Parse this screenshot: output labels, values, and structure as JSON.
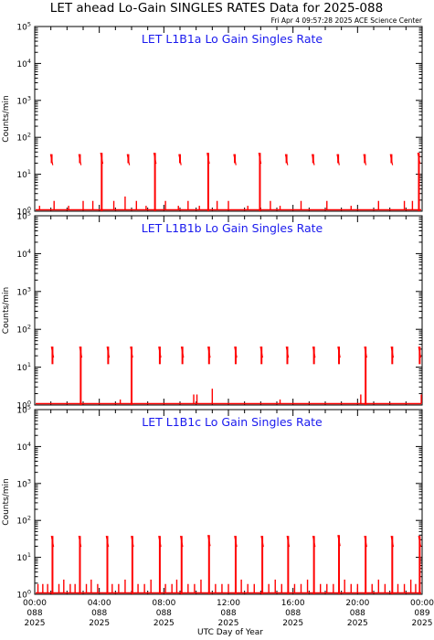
{
  "header": {
    "title": "LET ahead Lo-Gain SINGLES RATES Data for 2025-088",
    "timestamp": "Fri Apr  4 09:57:28 2025 ACE Science Center"
  },
  "colors": {
    "data": "#ff0000",
    "panel_title": "#1a1aee",
    "axes": "#000000"
  },
  "chart_data": [
    {
      "type": "line",
      "title": "LET L1B1a Lo Gain Singles Rate",
      "ylabel": "Counts/min",
      "xlabel": "UTC Day of Year",
      "yscale": "log",
      "ylim": [
        1,
        100000
      ],
      "xlim": [
        0,
        24
      ],
      "yticks": [
        "10^0",
        "10^1",
        "10^2",
        "10^3",
        "10^4",
        "10^5"
      ],
      "baseline": 1,
      "spikes": [
        {
          "x": 1.05,
          "peak": 35,
          "bottom": 20
        },
        {
          "x": 2.8,
          "peak": 35,
          "bottom": 20
        },
        {
          "x": 4.15,
          "peak": 38,
          "bottom": 1
        },
        {
          "x": 5.8,
          "peak": 35,
          "bottom": 20
        },
        {
          "x": 7.45,
          "peak": 38,
          "bottom": 1
        },
        {
          "x": 9.0,
          "peak": 35,
          "bottom": 20
        },
        {
          "x": 10.75,
          "peak": 38,
          "bottom": 1
        },
        {
          "x": 12.4,
          "peak": 35,
          "bottom": 20
        },
        {
          "x": 13.95,
          "peak": 38,
          "bottom": 1
        },
        {
          "x": 15.6,
          "peak": 35,
          "bottom": 20
        },
        {
          "x": 17.25,
          "peak": 35,
          "bottom": 20
        },
        {
          "x": 18.8,
          "peak": 35,
          "bottom": 20
        },
        {
          "x": 20.45,
          "peak": 35,
          "bottom": 20
        },
        {
          "x": 22.1,
          "peak": 35,
          "bottom": 20
        },
        {
          "x": 23.8,
          "peak": 38,
          "bottom": 1
        }
      ],
      "noise": [
        {
          "x": 0.3,
          "y": 1.4
        },
        {
          "x": 1.2,
          "y": 1.9
        },
        {
          "x": 2.1,
          "y": 1.4
        },
        {
          "x": 3.0,
          "y": 1.9
        },
        {
          "x": 3.6,
          "y": 1.9
        },
        {
          "x": 4.9,
          "y": 1.9
        },
        {
          "x": 5.6,
          "y": 2.5
        },
        {
          "x": 6.3,
          "y": 1.9
        },
        {
          "x": 6.9,
          "y": 1.4
        },
        {
          "x": 8.1,
          "y": 1.9
        },
        {
          "x": 8.9,
          "y": 1.4
        },
        {
          "x": 9.5,
          "y": 1.9
        },
        {
          "x": 10.2,
          "y": 1.4
        },
        {
          "x": 11.3,
          "y": 1.9
        },
        {
          "x": 12.0,
          "y": 1.9
        },
        {
          "x": 13.2,
          "y": 1.4
        },
        {
          "x": 14.6,
          "y": 1.9
        },
        {
          "x": 15.2,
          "y": 1.4
        },
        {
          "x": 16.5,
          "y": 1.9
        },
        {
          "x": 18.1,
          "y": 1.9
        },
        {
          "x": 19.6,
          "y": 1.4
        },
        {
          "x": 21.3,
          "y": 1.9
        },
        {
          "x": 22.9,
          "y": 1.9
        },
        {
          "x": 23.4,
          "y": 1.9
        }
      ]
    },
    {
      "type": "line",
      "title": "LET L1B1b Lo Gain Singles Rate",
      "ylabel": "Counts/min",
      "xlabel": "UTC Day of Year",
      "yscale": "log",
      "ylim": [
        1,
        100000
      ],
      "xlim": [
        0,
        24
      ],
      "yticks": [
        "10^0",
        "10^1",
        "10^2",
        "10^3",
        "10^4",
        "10^5"
      ],
      "baseline": 1,
      "spikes": [
        {
          "x": 1.1,
          "peak": 35,
          "bottom": 12
        },
        {
          "x": 2.85,
          "peak": 35,
          "bottom": 1
        },
        {
          "x": 4.55,
          "peak": 35,
          "bottom": 12
        },
        {
          "x": 6.0,
          "peak": 35,
          "bottom": 1
        },
        {
          "x": 7.75,
          "peak": 35,
          "bottom": 12
        },
        {
          "x": 9.15,
          "peak": 35,
          "bottom": 12
        },
        {
          "x": 10.8,
          "peak": 35,
          "bottom": 12
        },
        {
          "x": 12.45,
          "peak": 35,
          "bottom": 12
        },
        {
          "x": 14.05,
          "peak": 35,
          "bottom": 12
        },
        {
          "x": 15.65,
          "peak": 35,
          "bottom": 12
        },
        {
          "x": 17.3,
          "peak": 35,
          "bottom": 12
        },
        {
          "x": 18.85,
          "peak": 35,
          "bottom": 12
        },
        {
          "x": 20.5,
          "peak": 35,
          "bottom": 1
        },
        {
          "x": 22.15,
          "peak": 35,
          "bottom": 12
        },
        {
          "x": 23.85,
          "peak": 35,
          "bottom": 12
        }
      ],
      "noise": [
        {
          "x": 9.85,
          "y": 1.9
        },
        {
          "x": 10.05,
          "y": 1.9
        },
        {
          "x": 11.0,
          "y": 2.7
        },
        {
          "x": 20.2,
          "y": 1.9
        },
        {
          "x": 23.95,
          "y": 1.9
        },
        {
          "x": 15.2,
          "y": 1.4
        },
        {
          "x": 5.3,
          "y": 1.4
        }
      ]
    },
    {
      "type": "line",
      "title": "LET L1B1c Lo Gain Singles Rate",
      "ylabel": "Counts/min",
      "xlabel": "UTC Day of Year",
      "yscale": "log",
      "ylim": [
        1,
        100000
      ],
      "xlim": [
        0,
        24
      ],
      "yticks": [
        "10^0",
        "10^1",
        "10^2",
        "10^3",
        "10^4",
        "10^5"
      ],
      "xticks": [
        {
          "x": 0,
          "time": "00:00",
          "doy": "088",
          "year": "2025"
        },
        {
          "x": 4,
          "time": "04:00",
          "doy": "088",
          "year": "2025"
        },
        {
          "x": 8,
          "time": "08:00",
          "doy": "088",
          "year": "2025"
        },
        {
          "x": 12,
          "time": "12:00",
          "doy": "088",
          "year": "2025"
        },
        {
          "x": 16,
          "time": "16:00",
          "doy": "088",
          "year": "2025"
        },
        {
          "x": 20,
          "time": "20:00",
          "doy": "088",
          "year": "2025"
        },
        {
          "x": 24,
          "time": "00:00",
          "doy": "089",
          "year": "2025"
        }
      ],
      "baseline": 1,
      "spikes": [
        {
          "x": 1.1,
          "peak": 38,
          "bottom": 1
        },
        {
          "x": 2.8,
          "peak": 38,
          "bottom": 1
        },
        {
          "x": 4.5,
          "peak": 38,
          "bottom": 1
        },
        {
          "x": 6.05,
          "peak": 38,
          "bottom": 1
        },
        {
          "x": 7.75,
          "peak": 38,
          "bottom": 1
        },
        {
          "x": 9.1,
          "peak": 38,
          "bottom": 1
        },
        {
          "x": 10.8,
          "peak": 40,
          "bottom": 1
        },
        {
          "x": 12.45,
          "peak": 38,
          "bottom": 1
        },
        {
          "x": 14.1,
          "peak": 38,
          "bottom": 1
        },
        {
          "x": 15.7,
          "peak": 38,
          "bottom": 1
        },
        {
          "x": 17.3,
          "peak": 38,
          "bottom": 1
        },
        {
          "x": 18.85,
          "peak": 40,
          "bottom": 1
        },
        {
          "x": 20.5,
          "peak": 38,
          "bottom": 1
        },
        {
          "x": 22.15,
          "peak": 38,
          "bottom": 1
        },
        {
          "x": 23.85,
          "peak": 38,
          "bottom": 1
        }
      ],
      "noise": [
        {
          "x": 0.2,
          "y": 1.9
        },
        {
          "x": 0.5,
          "y": 1.9
        },
        {
          "x": 0.8,
          "y": 1.9
        },
        {
          "x": 1.5,
          "y": 1.9
        },
        {
          "x": 1.8,
          "y": 2.5
        },
        {
          "x": 2.2,
          "y": 1.9
        },
        {
          "x": 2.5,
          "y": 1.9
        },
        {
          "x": 3.2,
          "y": 1.9
        },
        {
          "x": 3.5,
          "y": 2.5
        },
        {
          "x": 3.9,
          "y": 1.9
        },
        {
          "x": 4.8,
          "y": 1.9
        },
        {
          "x": 5.2,
          "y": 1.9
        },
        {
          "x": 5.6,
          "y": 2.5
        },
        {
          "x": 6.4,
          "y": 1.9
        },
        {
          "x": 6.8,
          "y": 1.9
        },
        {
          "x": 7.2,
          "y": 2.5
        },
        {
          "x": 8.1,
          "y": 1.9
        },
        {
          "x": 8.5,
          "y": 1.9
        },
        {
          "x": 8.8,
          "y": 2.5
        },
        {
          "x": 9.5,
          "y": 1.9
        },
        {
          "x": 9.9,
          "y": 1.9
        },
        {
          "x": 10.3,
          "y": 2.5
        },
        {
          "x": 11.2,
          "y": 1.9
        },
        {
          "x": 11.6,
          "y": 1.9
        },
        {
          "x": 12.0,
          "y": 1.9
        },
        {
          "x": 12.8,
          "y": 2.5
        },
        {
          "x": 13.2,
          "y": 1.9
        },
        {
          "x": 13.6,
          "y": 1.9
        },
        {
          "x": 14.5,
          "y": 1.9
        },
        {
          "x": 14.9,
          "y": 2.5
        },
        {
          "x": 15.3,
          "y": 1.9
        },
        {
          "x": 16.1,
          "y": 1.9
        },
        {
          "x": 16.5,
          "y": 1.9
        },
        {
          "x": 16.9,
          "y": 2.5
        },
        {
          "x": 17.7,
          "y": 1.9
        },
        {
          "x": 18.1,
          "y": 1.9
        },
        {
          "x": 18.5,
          "y": 1.9
        },
        {
          "x": 19.2,
          "y": 2.5
        },
        {
          "x": 19.6,
          "y": 1.9
        },
        {
          "x": 20.0,
          "y": 1.9
        },
        {
          "x": 20.9,
          "y": 1.9
        },
        {
          "x": 21.3,
          "y": 2.5
        },
        {
          "x": 21.7,
          "y": 1.9
        },
        {
          "x": 22.5,
          "y": 1.9
        },
        {
          "x": 22.9,
          "y": 1.9
        },
        {
          "x": 23.3,
          "y": 2.5
        },
        {
          "x": 23.6,
          "y": 1.9
        }
      ]
    }
  ]
}
